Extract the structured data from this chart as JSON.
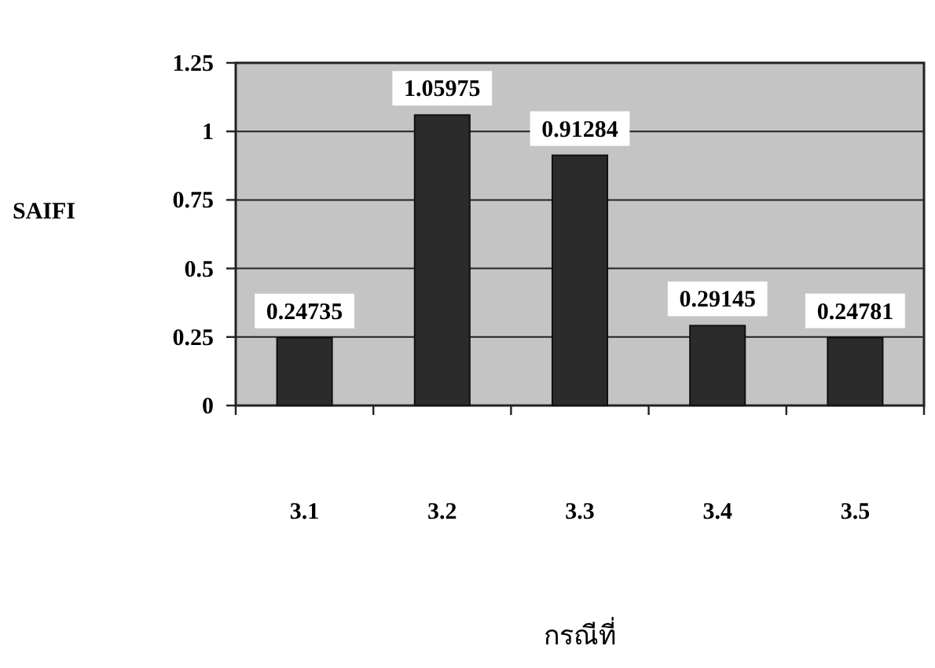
{
  "chart_data": {
    "type": "bar",
    "xlabel": "กรณีที่",
    "ylabel": "SAIFI",
    "categories": [
      "3.1",
      "3.2",
      "3.3",
      "3.4",
      "3.5"
    ],
    "values": [
      0.24735,
      1.05975,
      0.91284,
      0.29145,
      0.24781
    ],
    "color": "#2b2b2b",
    "ylim": [
      0,
      1.25
    ],
    "yticks": [
      0,
      0.25,
      0.5,
      0.75,
      1,
      1.25
    ],
    "grid": "y",
    "data_labels": true
  }
}
